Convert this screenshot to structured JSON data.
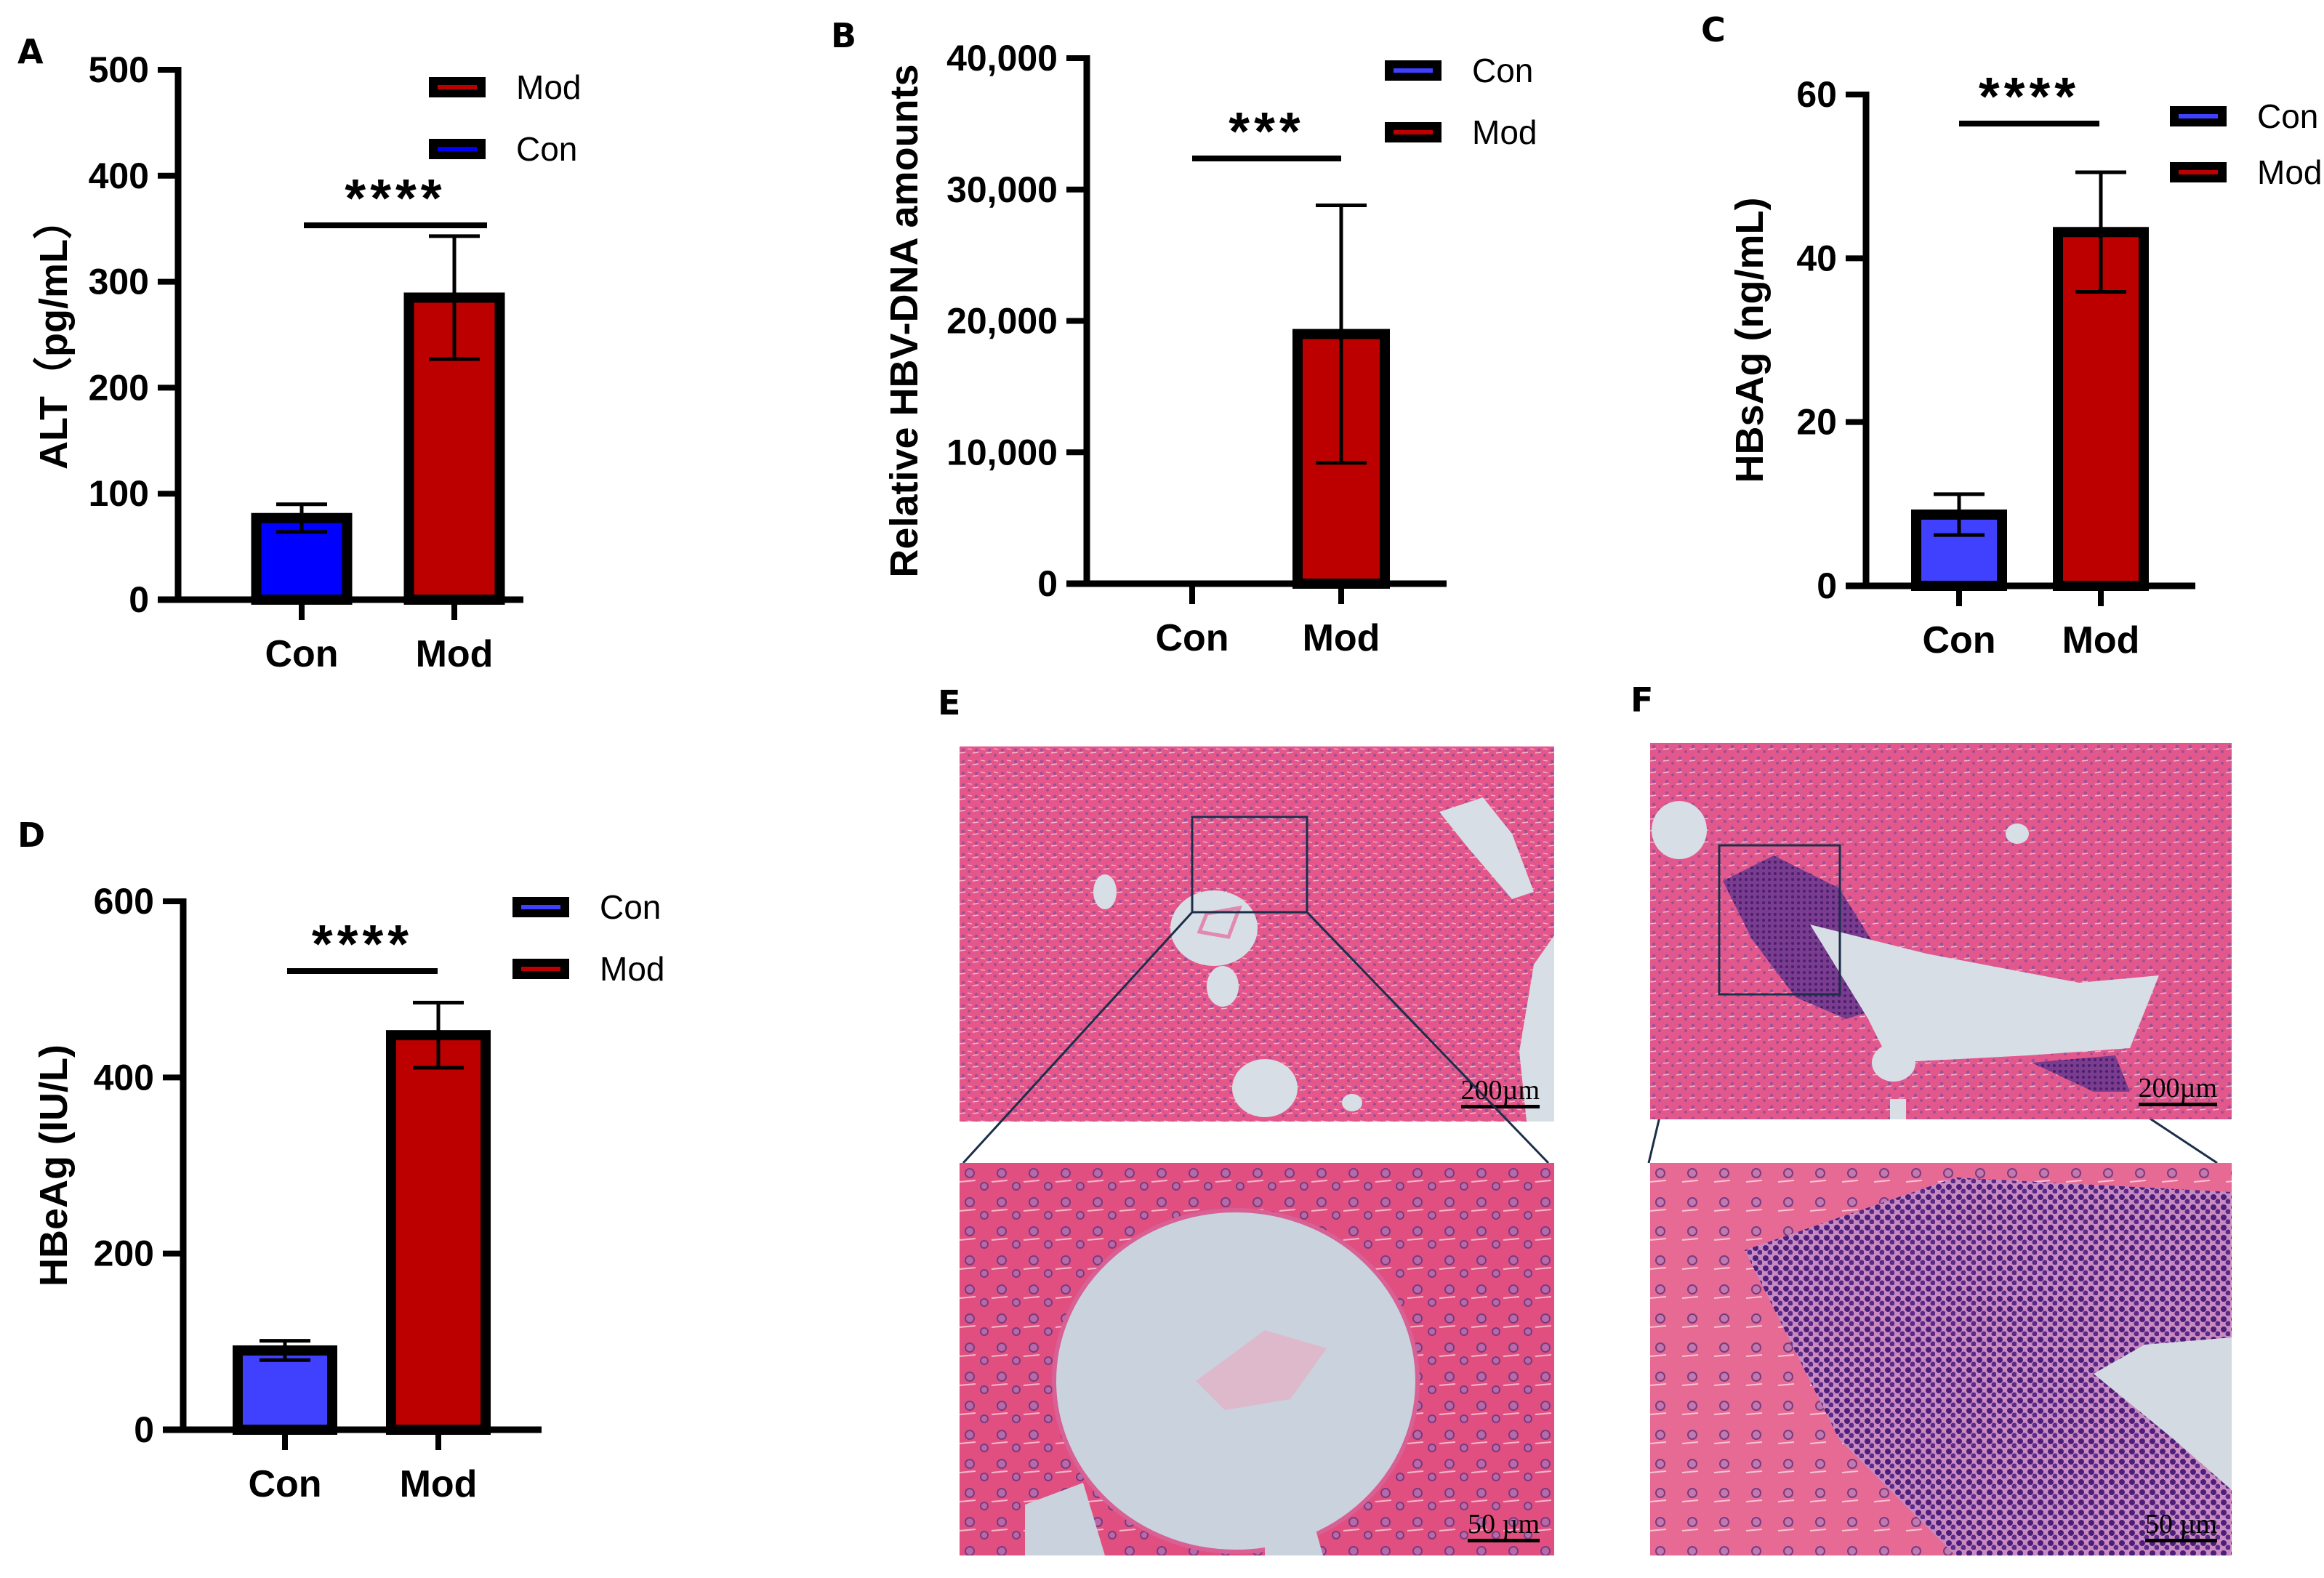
{
  "colors": {
    "con_A": "#0000FF",
    "con": "#4040FF",
    "mod": "#BC0000",
    "outline": "#000000",
    "inset_box": "#1B2E4A"
  },
  "panels": {
    "A": {
      "letter": "A"
    },
    "B": {
      "letter": "B"
    },
    "C": {
      "letter": "C"
    },
    "D": {
      "letter": "D"
    },
    "E": {
      "letter": "E",
      "scale_top": "200µm",
      "scale_bottom": "50 µm"
    },
    "F": {
      "letter": "F",
      "scale_top": "200µm",
      "scale_bottom": "50 µm"
    }
  },
  "chart_data": [
    {
      "panel": "A",
      "type": "bar",
      "title": "",
      "xlabel": "",
      "ylabel": "ALT（pg/mL）",
      "categories": [
        "Con",
        "Mod"
      ],
      "values": [
        77,
        285
      ],
      "error": [
        13,
        58
      ],
      "ylim": [
        0,
        500
      ],
      "yticks": [
        "0",
        "100",
        "200",
        "300",
        "400",
        "500"
      ],
      "significance": "****",
      "legend": [
        "Mod",
        "Con"
      ],
      "legend_position": "top-right",
      "grid": false
    },
    {
      "panel": "B",
      "type": "bar",
      "title": "",
      "xlabel": "",
      "ylabel": "Relative HBV-DNA amounts",
      "categories": [
        "Con",
        "Mod"
      ],
      "values": [
        0,
        19000
      ],
      "error": [
        0,
        9800
      ],
      "ylim": [
        0,
        40000
      ],
      "yticks": [
        "0",
        "10,000",
        "20,000",
        "30,000",
        "40,000"
      ],
      "significance": "***",
      "legend": [
        "Con",
        "Mod"
      ],
      "legend_position": "top-right",
      "grid": false
    },
    {
      "panel": "C",
      "type": "bar",
      "title": "",
      "xlabel": "",
      "ylabel": "HBsAg (ng/mL)",
      "categories": [
        "Con",
        "Mod"
      ],
      "values": [
        8.7,
        43.2
      ],
      "error": [
        2.5,
        7.3
      ],
      "ylim": [
        0,
        60
      ],
      "yticks": [
        "0",
        "20",
        "40",
        "60"
      ],
      "significance": "****",
      "legend": [
        "Con",
        "Mod"
      ],
      "legend_position": "top-right",
      "grid": false
    },
    {
      "panel": "D",
      "type": "bar",
      "title": "",
      "xlabel": "",
      "ylabel": "HBeAg (IU/L)",
      "categories": [
        "Con",
        "Mod"
      ],
      "values": [
        90,
        448
      ],
      "error": [
        11,
        37
      ],
      "ylim": [
        0,
        600
      ],
      "yticks": [
        "0",
        "200",
        "400",
        "600"
      ],
      "significance": "****",
      "legend": [
        "Con",
        "Mod"
      ],
      "legend_position": "top-right",
      "grid": false
    }
  ]
}
